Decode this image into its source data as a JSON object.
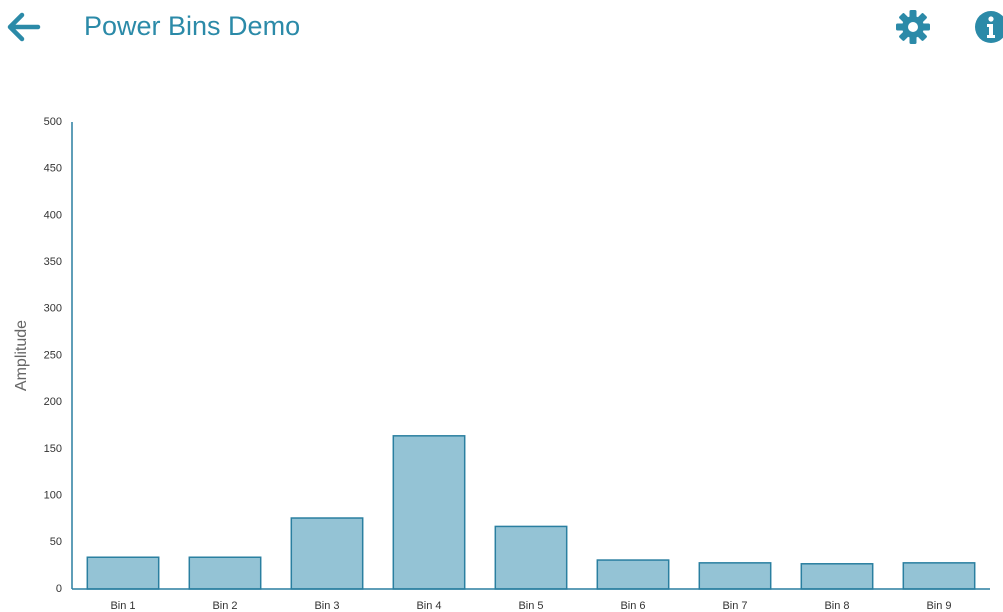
{
  "header": {
    "title": "Power Bins Demo"
  },
  "chart_data": {
    "type": "bar",
    "y_label": "Amplitude",
    "categories": [
      "Bin 1",
      "Bin 2",
      "Bin 3",
      "Bin 4",
      "Bin 5",
      "Bin 6",
      "Bin 7",
      "Bin 8",
      "Bin 9"
    ],
    "values": [
      34,
      34,
      76,
      164,
      67,
      31,
      28,
      27,
      28
    ],
    "color": "#94c3d5",
    "edge_color": "#2a7fa0",
    "ylim": [
      0,
      500
    ],
    "yticks": [
      0,
      50,
      100,
      150,
      200,
      250,
      300,
      350,
      400,
      450,
      500
    ],
    "grid": false
  }
}
